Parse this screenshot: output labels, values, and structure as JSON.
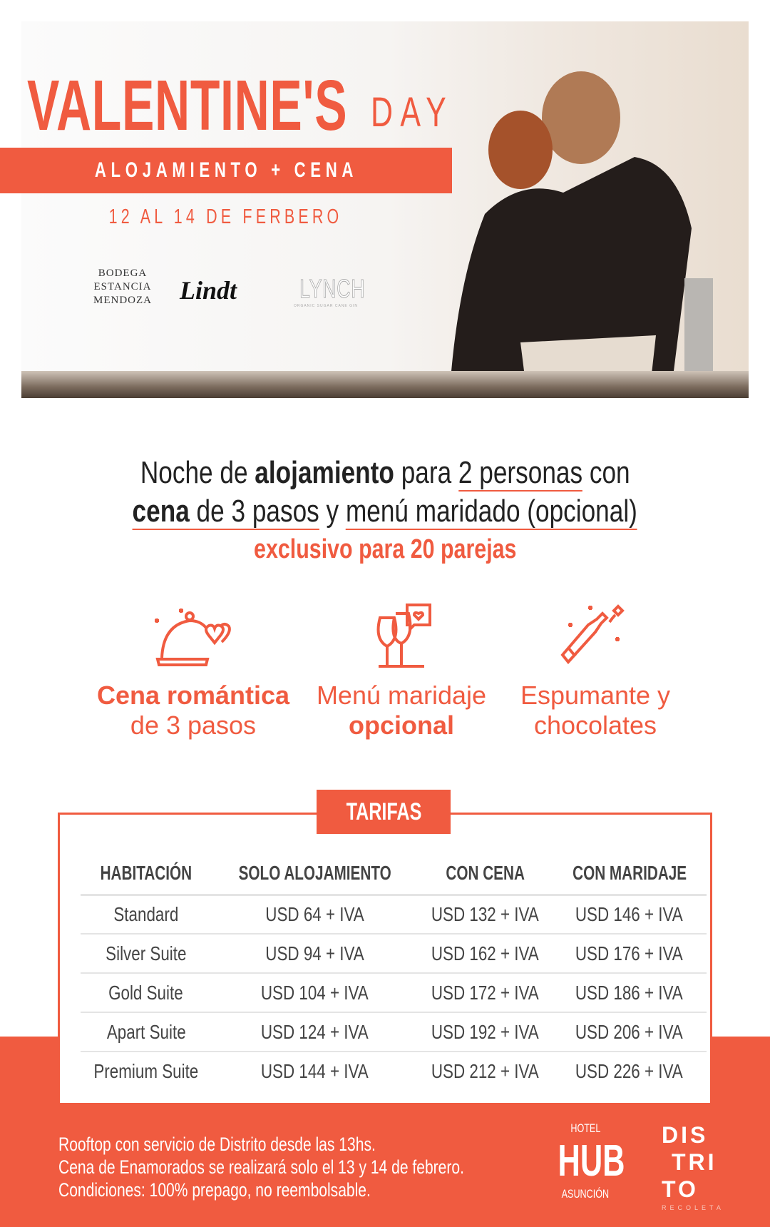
{
  "colors": {
    "accent": "#f05b40",
    "text": "#222222",
    "table_text": "#444444"
  },
  "hero": {
    "title": "VALENTINE'S",
    "title_suffix": "DAY",
    "banner": "ALOJAMIENTO + CENA",
    "dates": "12 AL 14 DE FERBERO",
    "sponsors": [
      {
        "name": "BODEGA ESTANCIA MENDOZA"
      },
      {
        "name": "Lindt"
      },
      {
        "name": "LYNCH",
        "sub": "ORGANIC SUGAR CANE GIN"
      }
    ]
  },
  "offer": {
    "l1a": "Noche de ",
    "l1b": "alojamiento",
    "l1c": " para ",
    "l1d": "2 personas",
    "l1e": " con",
    "l2a": "cena",
    "l2b": " de 3 pasos",
    "l2c": " y ",
    "l2d": "menú maridado (opcional)",
    "exclusive": "exclusivo para 20 parejas"
  },
  "features": [
    {
      "icon": "cloche-hearts-icon",
      "line1": "Cena romántica",
      "line2": "de 3 pasos"
    },
    {
      "icon": "wine-glasses-icon",
      "line1": "Menú maridaje",
      "line2": "opcional"
    },
    {
      "icon": "champagne-bottle-icon",
      "line1": "Espumante y",
      "line2": "chocolates"
    }
  ],
  "tarifas": {
    "title": "TARIFAS",
    "headers": [
      "HABITACIÓN",
      "SOLO ALOJAMIENTO",
      "CON CENA",
      "CON MARIDAJE"
    ],
    "rows": [
      [
        "Standard",
        "USD 64 + IVA",
        "USD 132 + IVA",
        "USD 146 + IVA"
      ],
      [
        "Silver Suite",
        "USD 94 + IVA",
        "USD 162 + IVA",
        "USD 176 + IVA"
      ],
      [
        "Gold Suite",
        "USD 104 + IVA",
        "USD 172 + IVA",
        "USD 186 + IVA"
      ],
      [
        "Apart Suite",
        "USD 124 + IVA",
        "USD 192 + IVA",
        "USD 206 + IVA"
      ],
      [
        "Premium Suite",
        "USD 144 + IVA",
        "USD 212 + IVA",
        "USD 226 + IVA"
      ]
    ]
  },
  "footer": {
    "lines": [
      "Rooftop con servicio de Distrito desde las 13hs.",
      "Cena de Enamorados se realizará solo el 13 y 14 de febrero.",
      "Condiciones: 100% prepago, no reembolsable."
    ],
    "hub": {
      "top": "HOTEL",
      "main": "HUB",
      "bottom": "ASUNCIÓN"
    },
    "distrito": {
      "l1": "DIS",
      "l2": "TRI",
      "l3": "TO",
      "sub": "RECOLETA"
    }
  }
}
